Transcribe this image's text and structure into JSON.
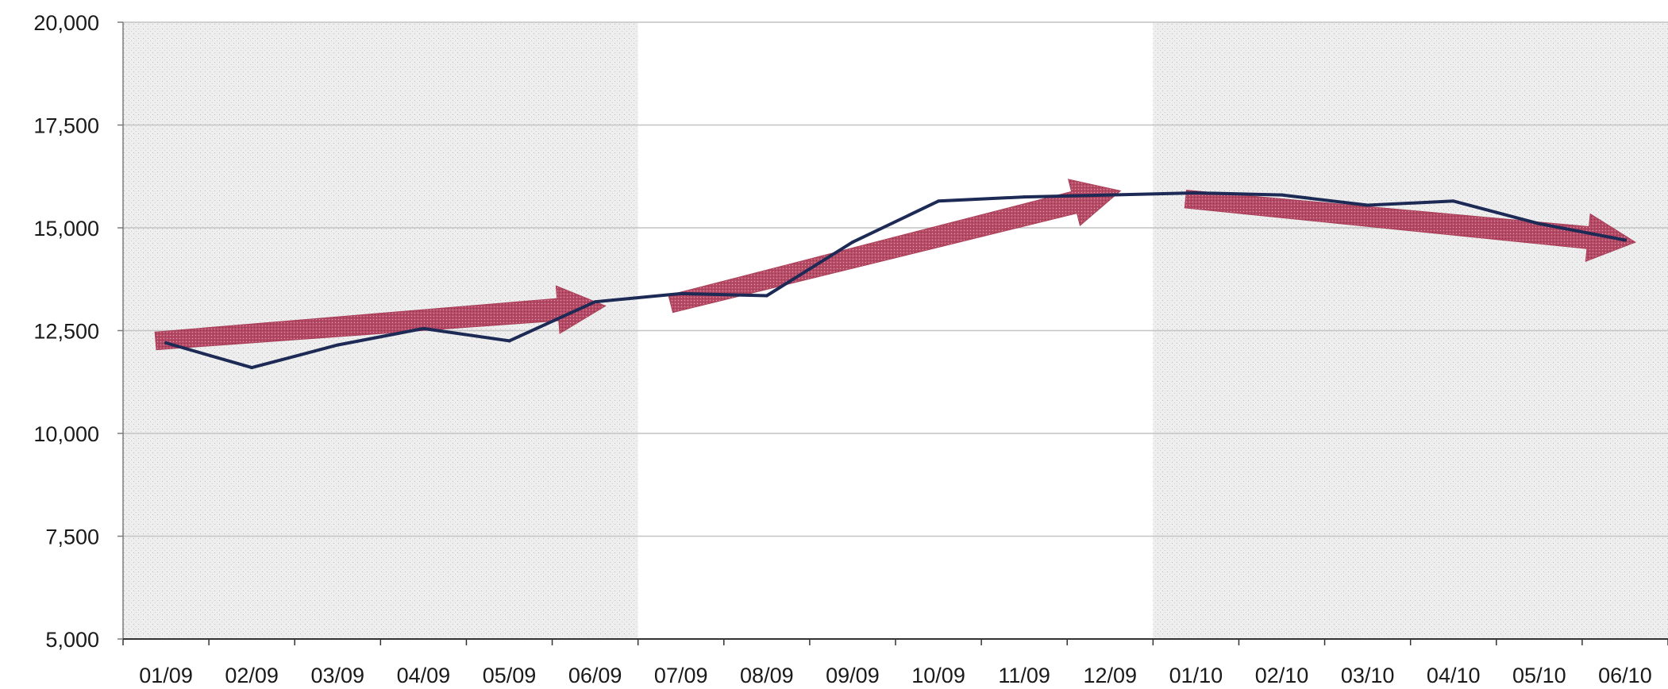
{
  "chart_data": {
    "type": "line",
    "title": "",
    "xlabel": "",
    "ylabel": "",
    "categories": [
      "01/09",
      "02/09",
      "03/09",
      "04/09",
      "05/09",
      "06/09",
      "07/09",
      "08/09",
      "09/09",
      "10/09",
      "11/09",
      "12/09",
      "01/10",
      "02/10",
      "03/10",
      "04/10",
      "05/10",
      "06/10"
    ],
    "ylim": [
      5000,
      20000
    ],
    "yticks": [
      5000,
      7500,
      10000,
      12500,
      15000,
      17500,
      20000
    ],
    "ytick_labels": [
      "5,000",
      "7,500",
      "10,000",
      "12,500",
      "15,000",
      "17,500",
      "20,000"
    ],
    "grid": true,
    "series": [
      {
        "values": [
          12200,
          11600,
          12150,
          12550,
          12250,
          13200,
          13400,
          13350,
          14650,
          15650,
          15750,
          15800,
          15850,
          15800,
          15550,
          15650,
          15100,
          14700
        ]
      }
    ],
    "trend_arrows": [
      {
        "from": {
          "x": "01/09",
          "y": 12250
        },
        "to": {
          "x": "06/09",
          "y": 13100
        }
      },
      {
        "from": {
          "x": "07/09",
          "y": 13150
        },
        "to": {
          "x": "12/09",
          "y": 15900
        }
      },
      {
        "from": {
          "x": "01/10",
          "y": 15700
        },
        "to": {
          "x": "06/10",
          "y": 14650
        }
      }
    ],
    "shaded_periods": [
      {
        "from": "01/09",
        "to": "06/09"
      },
      {
        "from": "01/10",
        "to": "06/10"
      }
    ],
    "colors": {
      "line": "#1c2a55",
      "arrow": "#a3324e",
      "shade": "#e8e8e8",
      "grid": "#c4c4c4",
      "axis": "#7a7a7a"
    }
  }
}
